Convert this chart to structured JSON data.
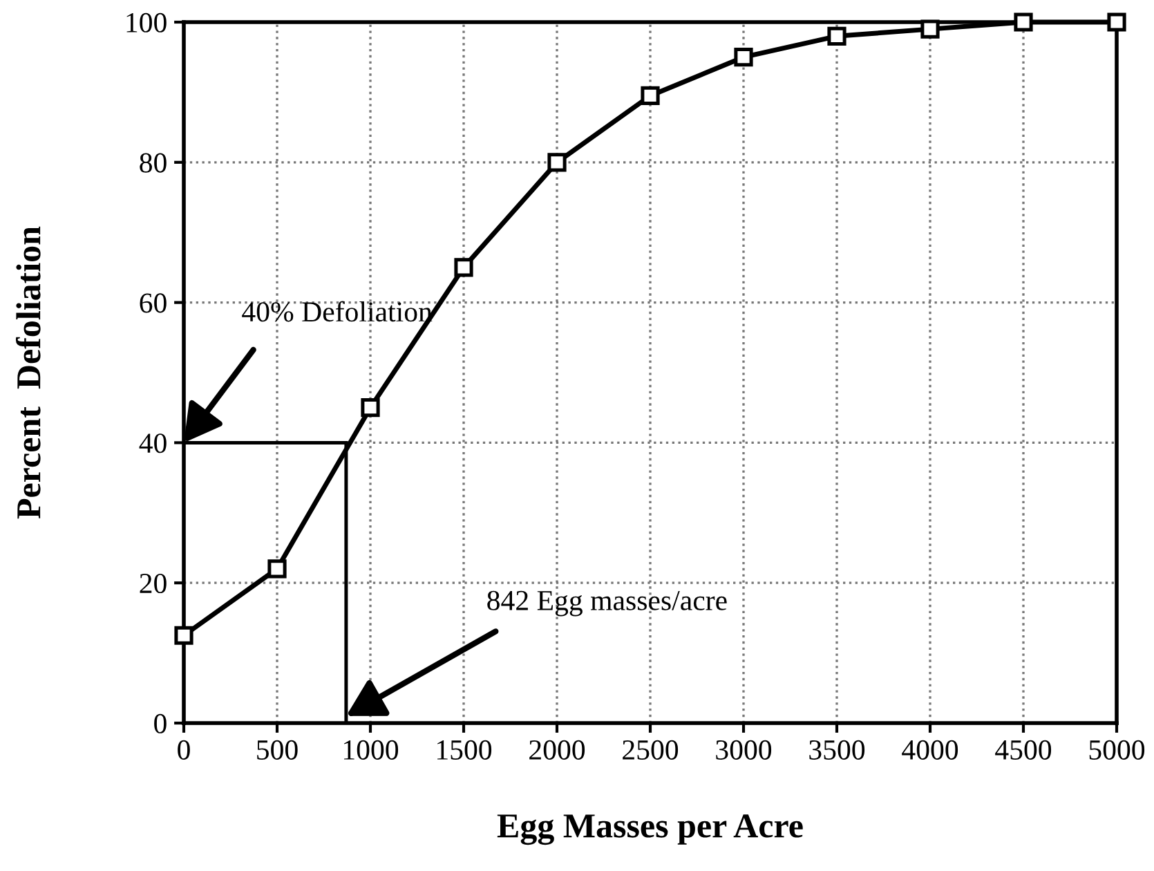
{
  "chart_data": {
    "type": "line",
    "xlabel": "Egg Masses per Acre",
    "ylabel": "Percent  Defoliation",
    "x": [
      0,
      500,
      1000,
      1500,
      2000,
      2500,
      3000,
      3500,
      4000,
      4500,
      5000
    ],
    "series": [
      {
        "color": "#000000",
        "values": [
          12.5,
          22,
          45,
          65,
          80,
          89.5,
          95,
          98,
          99,
          100,
          100
        ]
      }
    ],
    "xlim": [
      0,
      5000
    ],
    "xticks": [
      0,
      500,
      1000,
      1500,
      2000,
      2500,
      3000,
      3500,
      4000,
      4500,
      5000
    ],
    "ylim": [
      0,
      100
    ],
    "yticks": [
      0,
      20,
      40,
      60,
      80,
      100
    ],
    "grid": true,
    "marker": "square",
    "line_style": "solid",
    "ref_lines": [
      {
        "axis": "y",
        "value": 40,
        "color": "#000000"
      },
      {
        "axis": "x",
        "value": 870,
        "color": "#000000"
      }
    ],
    "annotations": [
      {
        "text": "40% Defoliation",
        "x": 0,
        "y": 40
      },
      {
        "text": "842 Egg masses/acre",
        "x": 870,
        "y": 1
      }
    ]
  }
}
